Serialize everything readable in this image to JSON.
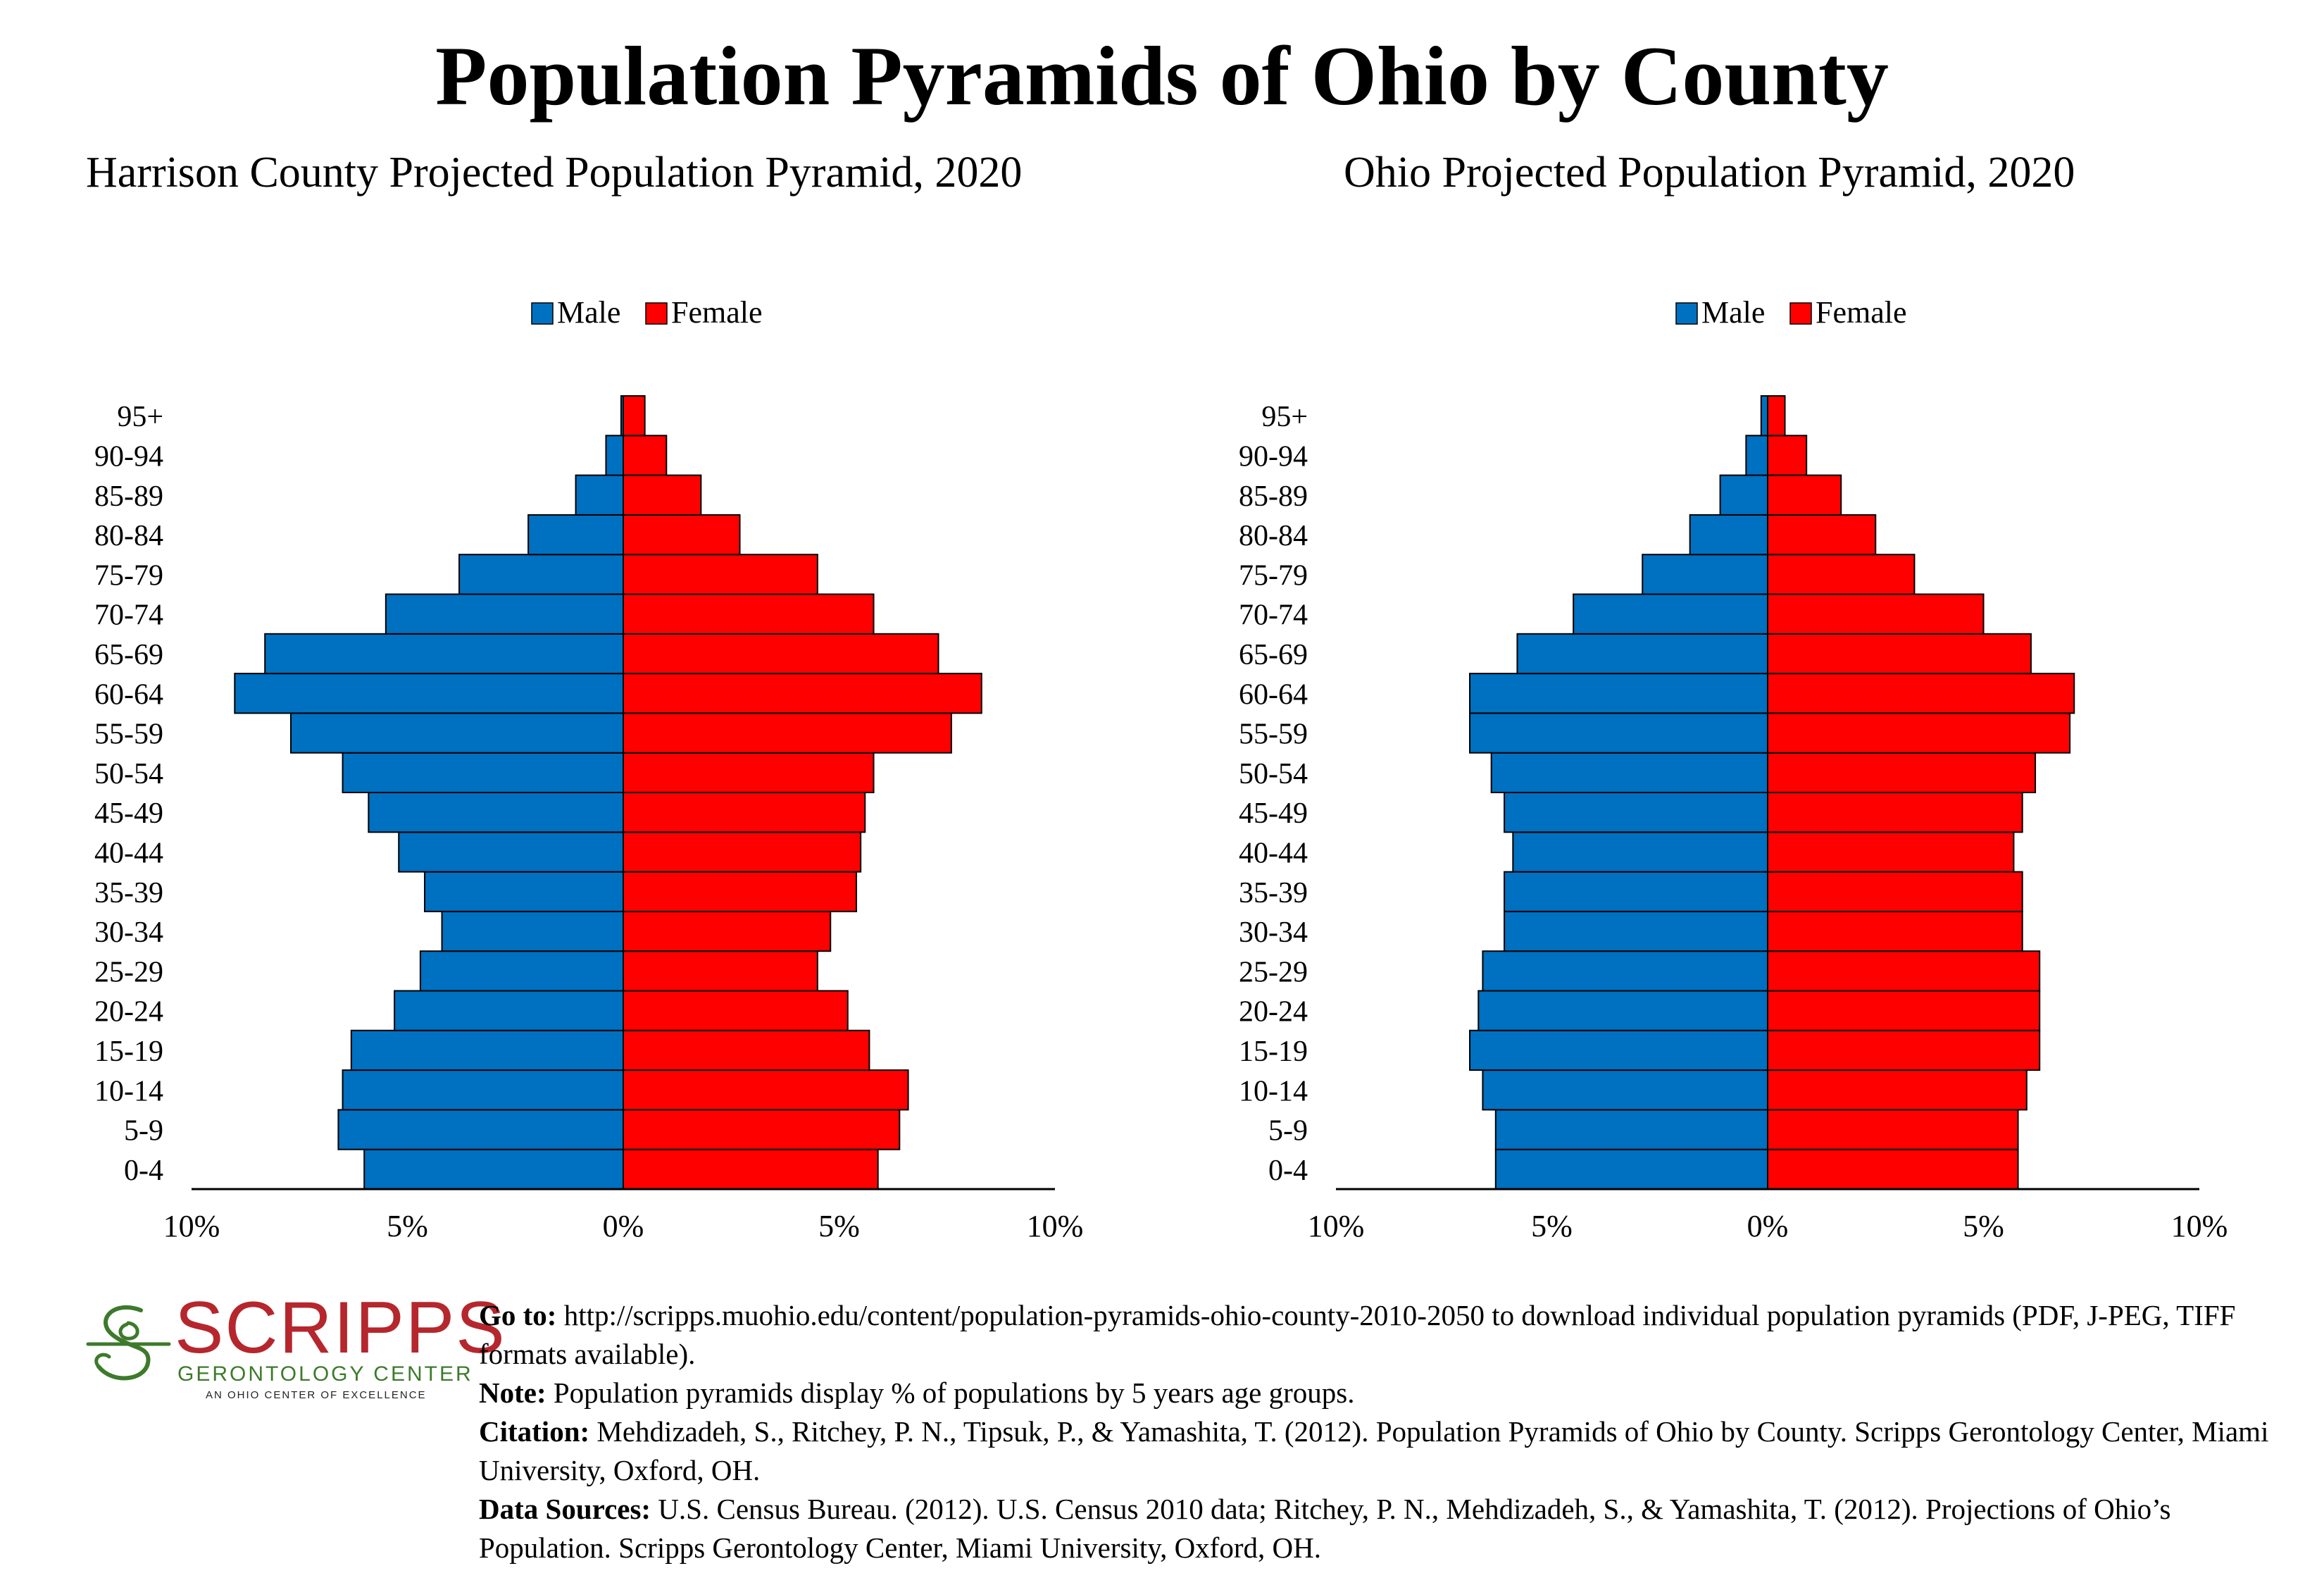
{
  "page": {
    "title": "Population Pyramids of Ohio by County"
  },
  "chart_data": [
    {
      "type": "bar",
      "orientation": "population-pyramid",
      "title": "Harrison County Projected Population Pyramid, 2020",
      "categories": [
        "0-4",
        "5-9",
        "10-14",
        "15-19",
        "20-24",
        "25-29",
        "30-34",
        "35-39",
        "40-44",
        "45-49",
        "50-54",
        "55-59",
        "60-64",
        "65-69",
        "70-74",
        "75-79",
        "80-84",
        "85-89",
        "90-94",
        "95+"
      ],
      "series": [
        {
          "name": "Male",
          "color": "#0070C0",
          "values": [
            6.0,
            6.6,
            6.5,
            6.3,
            5.3,
            4.7,
            4.2,
            4.6,
            5.2,
            5.9,
            6.5,
            7.7,
            9.0,
            8.3,
            5.5,
            3.8,
            2.2,
            1.1,
            0.4,
            0.05
          ]
        },
        {
          "name": "Female",
          "color": "#FF0000",
          "values": [
            5.9,
            6.4,
            6.6,
            5.7,
            5.2,
            4.5,
            4.8,
            5.4,
            5.5,
            5.6,
            5.8,
            7.6,
            8.3,
            7.3,
            5.8,
            4.5,
            2.7,
            1.8,
            1.0,
            0.5
          ]
        }
      ],
      "xlim": [
        -10,
        10
      ],
      "x_tick_labels": [
        "10%",
        "5%",
        "0%",
        "5%",
        "10%"
      ],
      "legend_position": "top-center",
      "grid": false
    },
    {
      "type": "bar",
      "orientation": "population-pyramid",
      "title": "Ohio Projected Population Pyramid, 2020",
      "categories": [
        "0-4",
        "5-9",
        "10-14",
        "15-19",
        "20-24",
        "25-29",
        "30-34",
        "35-39",
        "40-44",
        "45-49",
        "50-54",
        "55-59",
        "60-64",
        "65-69",
        "70-74",
        "75-79",
        "80-84",
        "85-89",
        "90-94",
        "95+"
      ],
      "series": [
        {
          "name": "Male",
          "color": "#0070C0",
          "values": [
            6.3,
            6.3,
            6.6,
            6.9,
            6.7,
            6.6,
            6.1,
            6.1,
            5.9,
            6.1,
            6.4,
            6.9,
            6.9,
            5.8,
            4.5,
            2.9,
            1.8,
            1.1,
            0.5,
            0.15
          ]
        },
        {
          "name": "Female",
          "color": "#FF0000",
          "values": [
            5.8,
            5.8,
            6.0,
            6.3,
            6.3,
            6.3,
            5.9,
            5.9,
            5.7,
            5.9,
            6.2,
            7.0,
            7.1,
            6.1,
            5.0,
            3.4,
            2.5,
            1.7,
            0.9,
            0.4
          ]
        }
      ],
      "xlim": [
        -10,
        10
      ],
      "x_tick_labels": [
        "10%",
        "5%",
        "0%",
        "5%",
        "10%"
      ],
      "legend_position": "top-center",
      "grid": false
    }
  ],
  "logo": {
    "word": "SCRIPPS",
    "subtitle": "GERONTOLOGY CENTER",
    "tagline": "AN OHIO CENTER OF EXCELLENCE"
  },
  "footer": {
    "goto_label": "Go to:",
    "goto_text": " http://scripps.muohio.edu/content/population-pyramids-ohio-county-2010-2050 to download individual population pyramids (PDF, J-PEG, TIFF formats available).",
    "note_label": "Note:",
    "note_text": " Population pyramids display % of populations by 5 years age groups.",
    "citation_label": "Citation:",
    "citation_text": " Mehdizadeh, S., Ritchey, P. N., Tipsuk, P., & Yamashita, T. (2012). Population Pyramids of Ohio by County. Scripps Gerontology Center, Miami University, Oxford, OH.",
    "sources_label": "Data Sources:",
    "sources_text": " U.S. Census Bureau. (2012). U.S. Census 2010 data; Ritchey, P. N., Mehdizadeh, S., & Yamashita, T. (2012). Projections of Ohio’s Population. Scripps Gerontology Center, Miami University, Oxford, OH."
  }
}
